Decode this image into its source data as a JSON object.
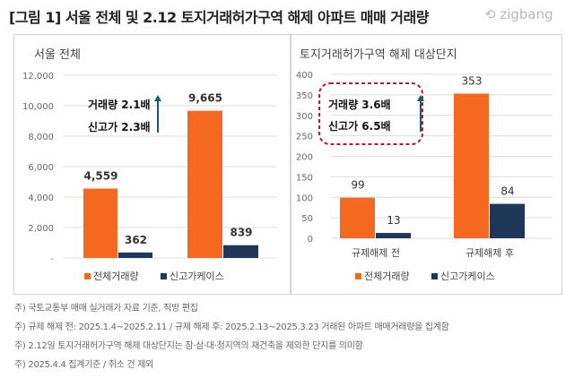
{
  "title": "[그림 1] 서울 전체 및 2.12 토지거래허가구역 해제 아파트 매매 거래량",
  "logo": "zigbang",
  "colors": {
    "orange": "#f4691f",
    "navy": "#1f3859",
    "accent_red": "#b01c2e",
    "arrow": "#1b5a6e"
  },
  "chart_data": [
    {
      "type": "bar",
      "title": "서울 전체",
      "categories": [
        "",
        ""
      ],
      "ylim": [
        0,
        12000
      ],
      "yticks": [
        "-",
        "2,000",
        "4,000",
        "6,000",
        "8,000",
        "10,000",
        "12,000"
      ],
      "grid": true,
      "legend": "bottom",
      "series": [
        {
          "name": "전체거래량",
          "values": [
            4559,
            9665
          ],
          "labels": [
            "4,559",
            "9,665"
          ]
        },
        {
          "name": "신고가케이스",
          "values": [
            362,
            839
          ],
          "labels": [
            "362",
            "839"
          ]
        }
      ],
      "annotation": {
        "line1": "거래량 2.1배",
        "line2": "신고가 2.3배"
      }
    },
    {
      "type": "bar",
      "title": "토지거래허가구역 해제 대상단지",
      "categories": [
        "규제해제 전",
        "규제해제 후"
      ],
      "ylim": [
        0,
        400
      ],
      "yticks": [
        "0",
        "50",
        "100",
        "150",
        "200",
        "250",
        "300",
        "350",
        "400"
      ],
      "grid": true,
      "legend": "bottom",
      "series": [
        {
          "name": "전체거래량",
          "values": [
            99,
            353
          ],
          "labels": [
            "99",
            "353"
          ]
        },
        {
          "name": "신고가케이스",
          "values": [
            13,
            84
          ],
          "labels": [
            "13",
            "84"
          ]
        }
      ],
      "annotation": {
        "line1": "거래량 3.6배",
        "line2": "신고가 6.5배"
      }
    }
  ],
  "notes": [
    "주) 국토교통부 매매 실거래가 자료 기준, 직방 편집",
    "주) 규제 해제 전: 2025.1.4~2025.2.11 / 규제 해제 후: 2025.2.13~2025.3.23 거래된 아파트 매매거래량을 집계함",
    "주) 2.12일 토지거래허가구역 해제 대상단지는  잠·삼·대·청지역의 재건축을 제외한 단지를 의미함",
    "주) 2025.4.4 집계기준 / 취소 건 제외"
  ]
}
